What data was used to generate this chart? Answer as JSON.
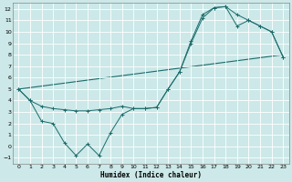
{
  "title": "",
  "xlabel": "Humidex (Indice chaleur)",
  "bg_color": "#cce8e8",
  "grid_color": "#ffffff",
  "line_color": "#1a6b6b",
  "xlim": [
    -0.5,
    23.5
  ],
  "ylim": [
    -1.5,
    12.5
  ],
  "xticks": [
    0,
    1,
    2,
    3,
    4,
    5,
    6,
    7,
    8,
    9,
    10,
    11,
    12,
    13,
    14,
    15,
    16,
    17,
    18,
    19,
    20,
    21,
    22,
    23
  ],
  "yticks": [
    -1,
    0,
    1,
    2,
    3,
    4,
    5,
    6,
    7,
    8,
    9,
    10,
    11,
    12
  ],
  "line1_x": [
    0,
    1,
    2,
    3,
    4,
    5,
    6,
    7,
    8,
    9,
    10,
    11,
    12,
    13,
    14,
    15,
    16,
    17,
    18,
    19,
    20,
    21,
    22,
    23
  ],
  "line1_y": [
    5.0,
    4.0,
    3.5,
    3.3,
    3.2,
    3.1,
    3.1,
    3.2,
    3.3,
    3.5,
    3.3,
    3.3,
    3.4,
    5.0,
    6.5,
    9.0,
    11.2,
    12.1,
    12.2,
    11.5,
    11.0,
    10.5,
    10.0,
    7.8
  ],
  "line2_x": [
    0,
    23
  ],
  "line2_y": [
    5.0,
    8.0
  ],
  "line3_x": [
    0,
    1,
    2,
    3,
    4,
    5,
    6,
    7,
    8,
    9,
    10,
    11,
    12,
    13,
    14,
    15,
    16,
    17,
    18,
    19,
    20,
    21,
    22,
    23
  ],
  "line3_y": [
    5.0,
    4.0,
    2.2,
    2.0,
    0.3,
    -0.8,
    0.2,
    -0.8,
    1.2,
    2.8,
    3.3,
    3.3,
    3.4,
    5.0,
    6.5,
    9.2,
    11.5,
    12.1,
    12.2,
    10.5,
    11.0,
    10.5,
    10.0,
    7.8
  ]
}
